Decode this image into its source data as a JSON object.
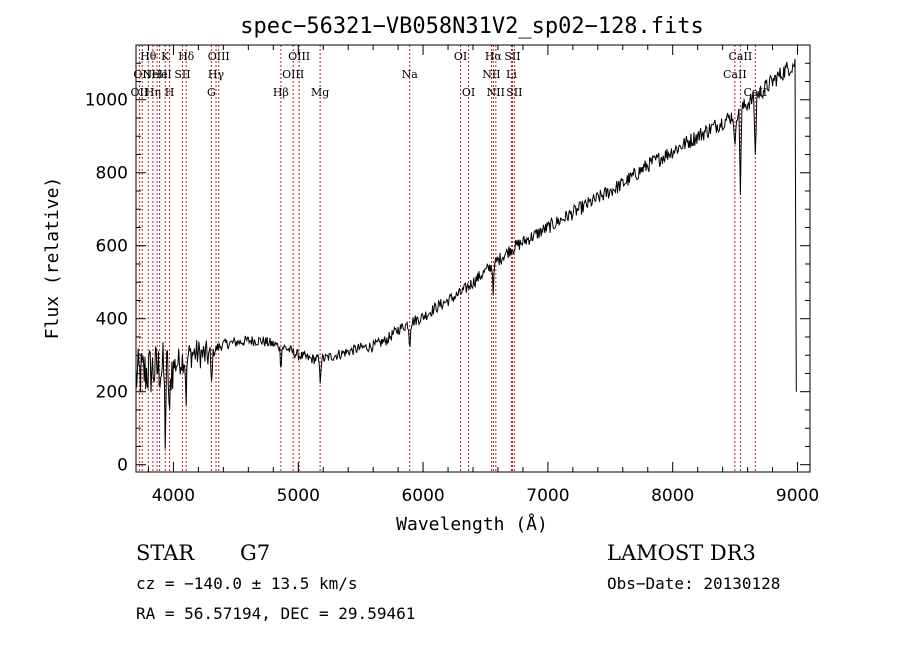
{
  "chart_data": {
    "type": "line",
    "title": "spec−56321−VB058N31V2_sp02−128.fits",
    "xlabel": "Wavelength (Å)",
    "ylabel": "Flux (relative)",
    "xlim": [
      3700,
      9100
    ],
    "ylim": [
      -20,
      1150
    ],
    "x_ticks": [
      4000,
      5000,
      6000,
      7000,
      8000,
      9000
    ],
    "y_ticks": [
      0,
      200,
      400,
      600,
      800,
      1000
    ],
    "grid": false,
    "series": [
      {
        "name": "flux",
        "x": [
          3700,
          3750,
          3800,
          3850,
          3900,
          3950,
          4000,
          4050,
          4100,
          4150,
          4200,
          4250,
          4300,
          4350,
          4400,
          4500,
          4600,
          4700,
          4800,
          4900,
          5000,
          5100,
          5200,
          5300,
          5400,
          5500,
          5600,
          5700,
          5800,
          5900,
          6000,
          6100,
          6200,
          6300,
          6400,
          6500,
          6600,
          6700,
          6800,
          6900,
          7000,
          7200,
          7400,
          7600,
          7800,
          8000,
          8200,
          8400,
          8500,
          8600,
          8700,
          8800,
          8900,
          8980
        ],
        "y": [
          240,
          250,
          255,
          260,
          265,
          265,
          270,
          285,
          295,
          305,
          305,
          300,
          300,
          320,
          330,
          335,
          340,
          340,
          330,
          320,
          300,
          290,
          290,
          300,
          310,
          320,
          325,
          340,
          370,
          390,
          405,
          430,
          450,
          470,
          500,
          530,
          560,
          590,
          610,
          630,
          650,
          690,
          730,
          770,
          820,
          860,
          900,
          940,
          960,
          990,
          1020,
          1050,
          1080,
          1100
        ]
      }
    ],
    "absorption_dips": [
      {
        "x": 3934,
        "depth": 180
      },
      {
        "x": 3969,
        "depth": 170
      },
      {
        "x": 4102,
        "depth": 110
      },
      {
        "x": 4305,
        "depth": 80
      },
      {
        "x": 4861,
        "depth": 50
      },
      {
        "x": 5175,
        "depth": 60
      },
      {
        "x": 5893,
        "depth": 60
      },
      {
        "x": 6563,
        "depth": 70
      },
      {
        "x": 8498,
        "depth": 110
      },
      {
        "x": 8542,
        "depth": 220
      },
      {
        "x": 8662,
        "depth": 170
      }
    ],
    "lines": [
      {
        "x": 3727,
        "label": "OII",
        "row": 2
      },
      {
        "x": 3750,
        "label": "OII",
        "row": 1
      },
      {
        "x": 3798,
        "label": "Hθ",
        "row": 0
      },
      {
        "x": 3835,
        "label": "Hη",
        "row": 2
      },
      {
        "x": 3869,
        "label": "NeIII",
        "row": 1
      },
      {
        "x": 3889,
        "label": "He",
        "row": 1
      },
      {
        "x": 3934,
        "label": "K",
        "row": 0
      },
      {
        "x": 3969,
        "label": "H",
        "row": 2
      },
      {
        "x": 4072,
        "label": "SII",
        "row": 1
      },
      {
        "x": 4102,
        "label": "Hδ",
        "row": 0
      },
      {
        "x": 4304,
        "label": "G",
        "row": 2
      },
      {
        "x": 4341,
        "label": "Hγ",
        "row": 1
      },
      {
        "x": 4363,
        "label": "OIII",
        "row": 0
      },
      {
        "x": 4861,
        "label": "Hβ",
        "row": 2
      },
      {
        "x": 4959,
        "label": "OIII",
        "row": 1
      },
      {
        "x": 5007,
        "label": "OIII",
        "row": 0
      },
      {
        "x": 5175,
        "label": "Mg",
        "row": 2
      },
      {
        "x": 5893,
        "label": "Na",
        "row": 1
      },
      {
        "x": 6300,
        "label": "OI",
        "row": 0
      },
      {
        "x": 6364,
        "label": "OI",
        "row": 2
      },
      {
        "x": 6548,
        "label": "NII",
        "row": 1
      },
      {
        "x": 6563,
        "label": "Hα",
        "row": 0
      },
      {
        "x": 6583,
        "label": "NII",
        "row": 2
      },
      {
        "x": 6708,
        "label": "Li",
        "row": 1
      },
      {
        "x": 6716,
        "label": "SII",
        "row": 0
      },
      {
        "x": 6731,
        "label": "SII",
        "row": 2
      },
      {
        "x": 8498,
        "label": "CaII",
        "row": 1
      },
      {
        "x": 8542,
        "label": "CaII",
        "row": 0
      },
      {
        "x": 8662,
        "label": "CaII",
        "row": 2
      }
    ]
  },
  "info": {
    "object_class": "STAR",
    "subclass": "G7",
    "survey": "LAMOST DR3",
    "redshift": "cz = −140.0 ± 13.5 km/s",
    "obs_date": "Obs−Date: 20130128",
    "coords": "RA =  56.57194, DEC =  29.59461"
  },
  "colors": {
    "line_marker": "#b22222",
    "spectrum": "#000000",
    "axis": "#000000"
  }
}
